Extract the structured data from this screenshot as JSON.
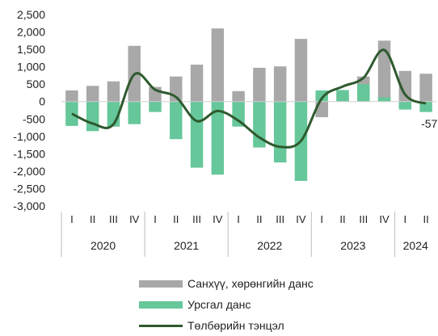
{
  "chart_data": {
    "type": "bar",
    "title": "",
    "xlabel": "",
    "ylabel": "",
    "ylim": [
      -3000,
      2500
    ],
    "yticks": [
      2500,
      2000,
      1500,
      1000,
      500,
      0,
      -500,
      -1000,
      -1500,
      -2000,
      -2500,
      -3000
    ],
    "ytick_labels": [
      "2,500",
      "2,000",
      "1,500",
      "1,000",
      "500",
      "0",
      "-500",
      "-1,000",
      "-1,500",
      "-2,000",
      "-2,500",
      "-3,000"
    ],
    "categories": [
      "I",
      "II",
      "III",
      "IV",
      "I",
      "II",
      "III",
      "IV",
      "I",
      "II",
      "III",
      "IV",
      "I",
      "II",
      "III",
      "IV",
      "I",
      "II"
    ],
    "years": [
      {
        "label": "2020",
        "count": 4
      },
      {
        "label": "2021",
        "count": 4
      },
      {
        "label": "2022",
        "count": 4
      },
      {
        "label": "2023",
        "count": 4
      },
      {
        "label": "2024",
        "count": 2
      }
    ],
    "series": [
      {
        "name": "Санхүү, хөрөнгийн данс",
        "kind": "bar",
        "color": "#a8a8a8",
        "values": [
          320,
          450,
          580,
          1600,
          420,
          720,
          1060,
          2100,
          300,
          970,
          1010,
          1800,
          -450,
          250,
          720,
          1750,
          880,
          800
        ]
      },
      {
        "name": "Урсгал данс",
        "kind": "bar",
        "color": "#66c79a",
        "values": [
          -700,
          -850,
          -720,
          -650,
          -300,
          -1080,
          -1900,
          -2100,
          -720,
          -1320,
          -1750,
          -2280,
          320,
          330,
          500,
          120,
          -230,
          -300
        ]
      },
      {
        "name": "Төлбөрийн тэнцэл",
        "kind": "line",
        "color": "#2e5a2e",
        "values": [
          -350,
          -630,
          -650,
          780,
          340,
          130,
          -560,
          -270,
          -550,
          -1030,
          -1300,
          -1130,
          90,
          430,
          680,
          1480,
          200,
          -57
        ]
      }
    ],
    "annotations": [
      {
        "text": "-57",
        "series": "Төлбөрийн тэнцэл",
        "index": 17
      }
    ],
    "legend_position": "bottom",
    "grid": false
  }
}
